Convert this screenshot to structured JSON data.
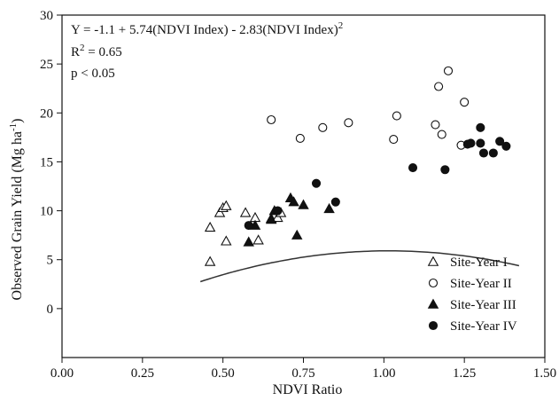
{
  "chart_data": {
    "type": "scatter",
    "xlabel": "NDVI Ratio",
    "ylabel": "Observed Grain Yield (Mg ha",
    "ylabel_sup": "-1",
    "ylabel_end": ")",
    "xlim": [
      0,
      1.5
    ],
    "ylim": [
      -5,
      30
    ],
    "xticks": [
      0,
      0.25,
      0.5,
      0.75,
      1.0,
      1.25,
      1.5
    ],
    "xtick_labels": [
      "0.00",
      "0.25",
      "0.50",
      "0.75",
      "1.00",
      "1.25",
      "1.50"
    ],
    "yticks": [
      0,
      5,
      10,
      15,
      20,
      25,
      30
    ],
    "ytick_labels": [
      "0",
      "5",
      "10",
      "15",
      "20",
      "25",
      "30"
    ],
    "grid": false,
    "legend_position": "bottom-right",
    "annotations": {
      "equation": "Y = -1.1 + 5.74(NDVI Index) - 2.83(NDVI Index)",
      "equation_sup": "2",
      "r2_prefix": "R",
      "r2_sup": "2",
      "r2_value": " = 0.65",
      "p_value": "p < 0.05"
    },
    "fit": {
      "intercept": -1.1,
      "b1": 5.74,
      "b2": -2.83,
      "x_range": [
        0.43,
        1.42
      ],
      "y_scale": 3.26
    },
    "series": [
      {
        "name": "Site-Year I",
        "marker": "triangle-open",
        "points": [
          [
            0.46,
            8.3
          ],
          [
            0.46,
            4.8
          ],
          [
            0.49,
            9.8
          ],
          [
            0.5,
            10.3
          ],
          [
            0.51,
            10.5
          ],
          [
            0.51,
            6.9
          ],
          [
            0.57,
            9.8
          ],
          [
            0.6,
            9.3
          ],
          [
            0.61,
            7.0
          ],
          [
            0.65,
            9.2
          ],
          [
            0.67,
            9.3
          ],
          [
            0.68,
            9.8
          ]
        ]
      },
      {
        "name": "Site-Year II",
        "marker": "circle-open",
        "points": [
          [
            0.65,
            19.3
          ],
          [
            0.74,
            17.4
          ],
          [
            0.81,
            18.5
          ],
          [
            0.89,
            19.0
          ],
          [
            1.03,
            17.3
          ],
          [
            1.04,
            19.7
          ],
          [
            1.16,
            18.8
          ],
          [
            1.17,
            22.7
          ],
          [
            1.18,
            17.8
          ],
          [
            1.2,
            24.3
          ],
          [
            1.24,
            16.7
          ],
          [
            1.25,
            21.1
          ]
        ]
      },
      {
        "name": "Site-Year III",
        "marker": "triangle-filled",
        "points": [
          [
            0.58,
            6.8
          ],
          [
            0.6,
            8.5
          ],
          [
            0.65,
            9.1
          ],
          [
            0.66,
            10.0
          ],
          [
            0.71,
            11.3
          ],
          [
            0.72,
            10.9
          ],
          [
            0.73,
            7.5
          ],
          [
            0.75,
            10.6
          ],
          [
            0.83,
            10.2
          ]
        ]
      },
      {
        "name": "Site-Year IV",
        "marker": "circle-filled",
        "points": [
          [
            0.58,
            8.5
          ],
          [
            0.67,
            10.0
          ],
          [
            0.79,
            12.8
          ],
          [
            0.85,
            10.9
          ],
          [
            1.09,
            14.4
          ],
          [
            1.19,
            14.2
          ],
          [
            1.26,
            16.8
          ],
          [
            1.27,
            16.9
          ],
          [
            1.3,
            18.5
          ],
          [
            1.3,
            16.9
          ],
          [
            1.31,
            15.9
          ],
          [
            1.34,
            15.9
          ],
          [
            1.36,
            17.1
          ],
          [
            1.38,
            16.6
          ]
        ]
      }
    ]
  }
}
